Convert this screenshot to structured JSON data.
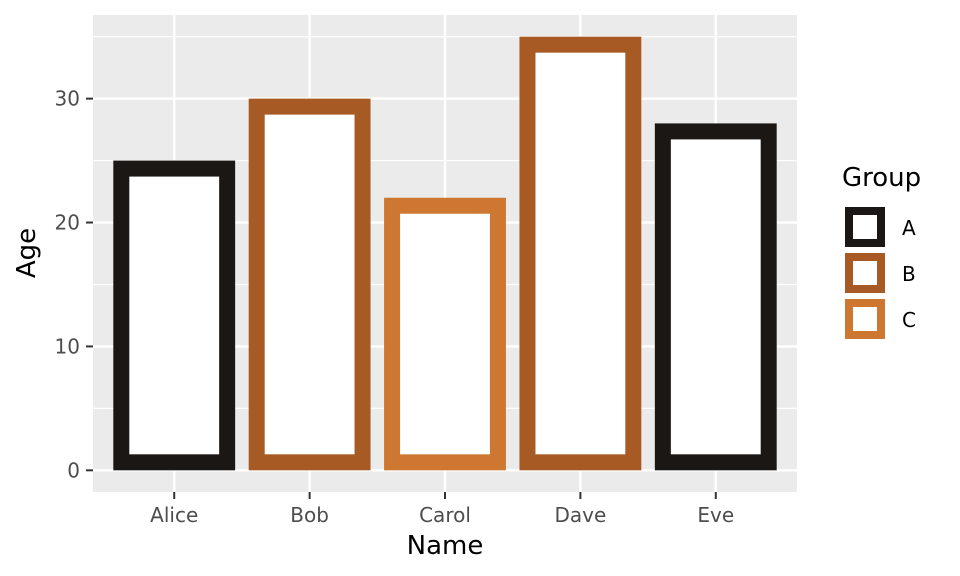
{
  "chart_data": {
    "type": "bar",
    "categories": [
      "Alice",
      "Bob",
      "Carol",
      "Dave",
      "Eve"
    ],
    "values": [
      25,
      30,
      22,
      35,
      28
    ],
    "groups": [
      "A",
      "B",
      "C",
      "B",
      "A"
    ],
    "xlabel": "Name",
    "ylabel": "Age",
    "ylim": [
      -1.75,
      36.75
    ],
    "yticks": [
      0,
      10,
      20,
      30
    ],
    "grid": true,
    "legend": {
      "title": "Group",
      "position": "right",
      "entries": [
        {
          "label": "A",
          "color": "#1b1715"
        },
        {
          "label": "B",
          "color": "#a85a24"
        },
        {
          "label": "C",
          "color": "#cd7730"
        }
      ]
    },
    "panel_background": "#ebebeb",
    "bar_fill": "#ffffff"
  }
}
